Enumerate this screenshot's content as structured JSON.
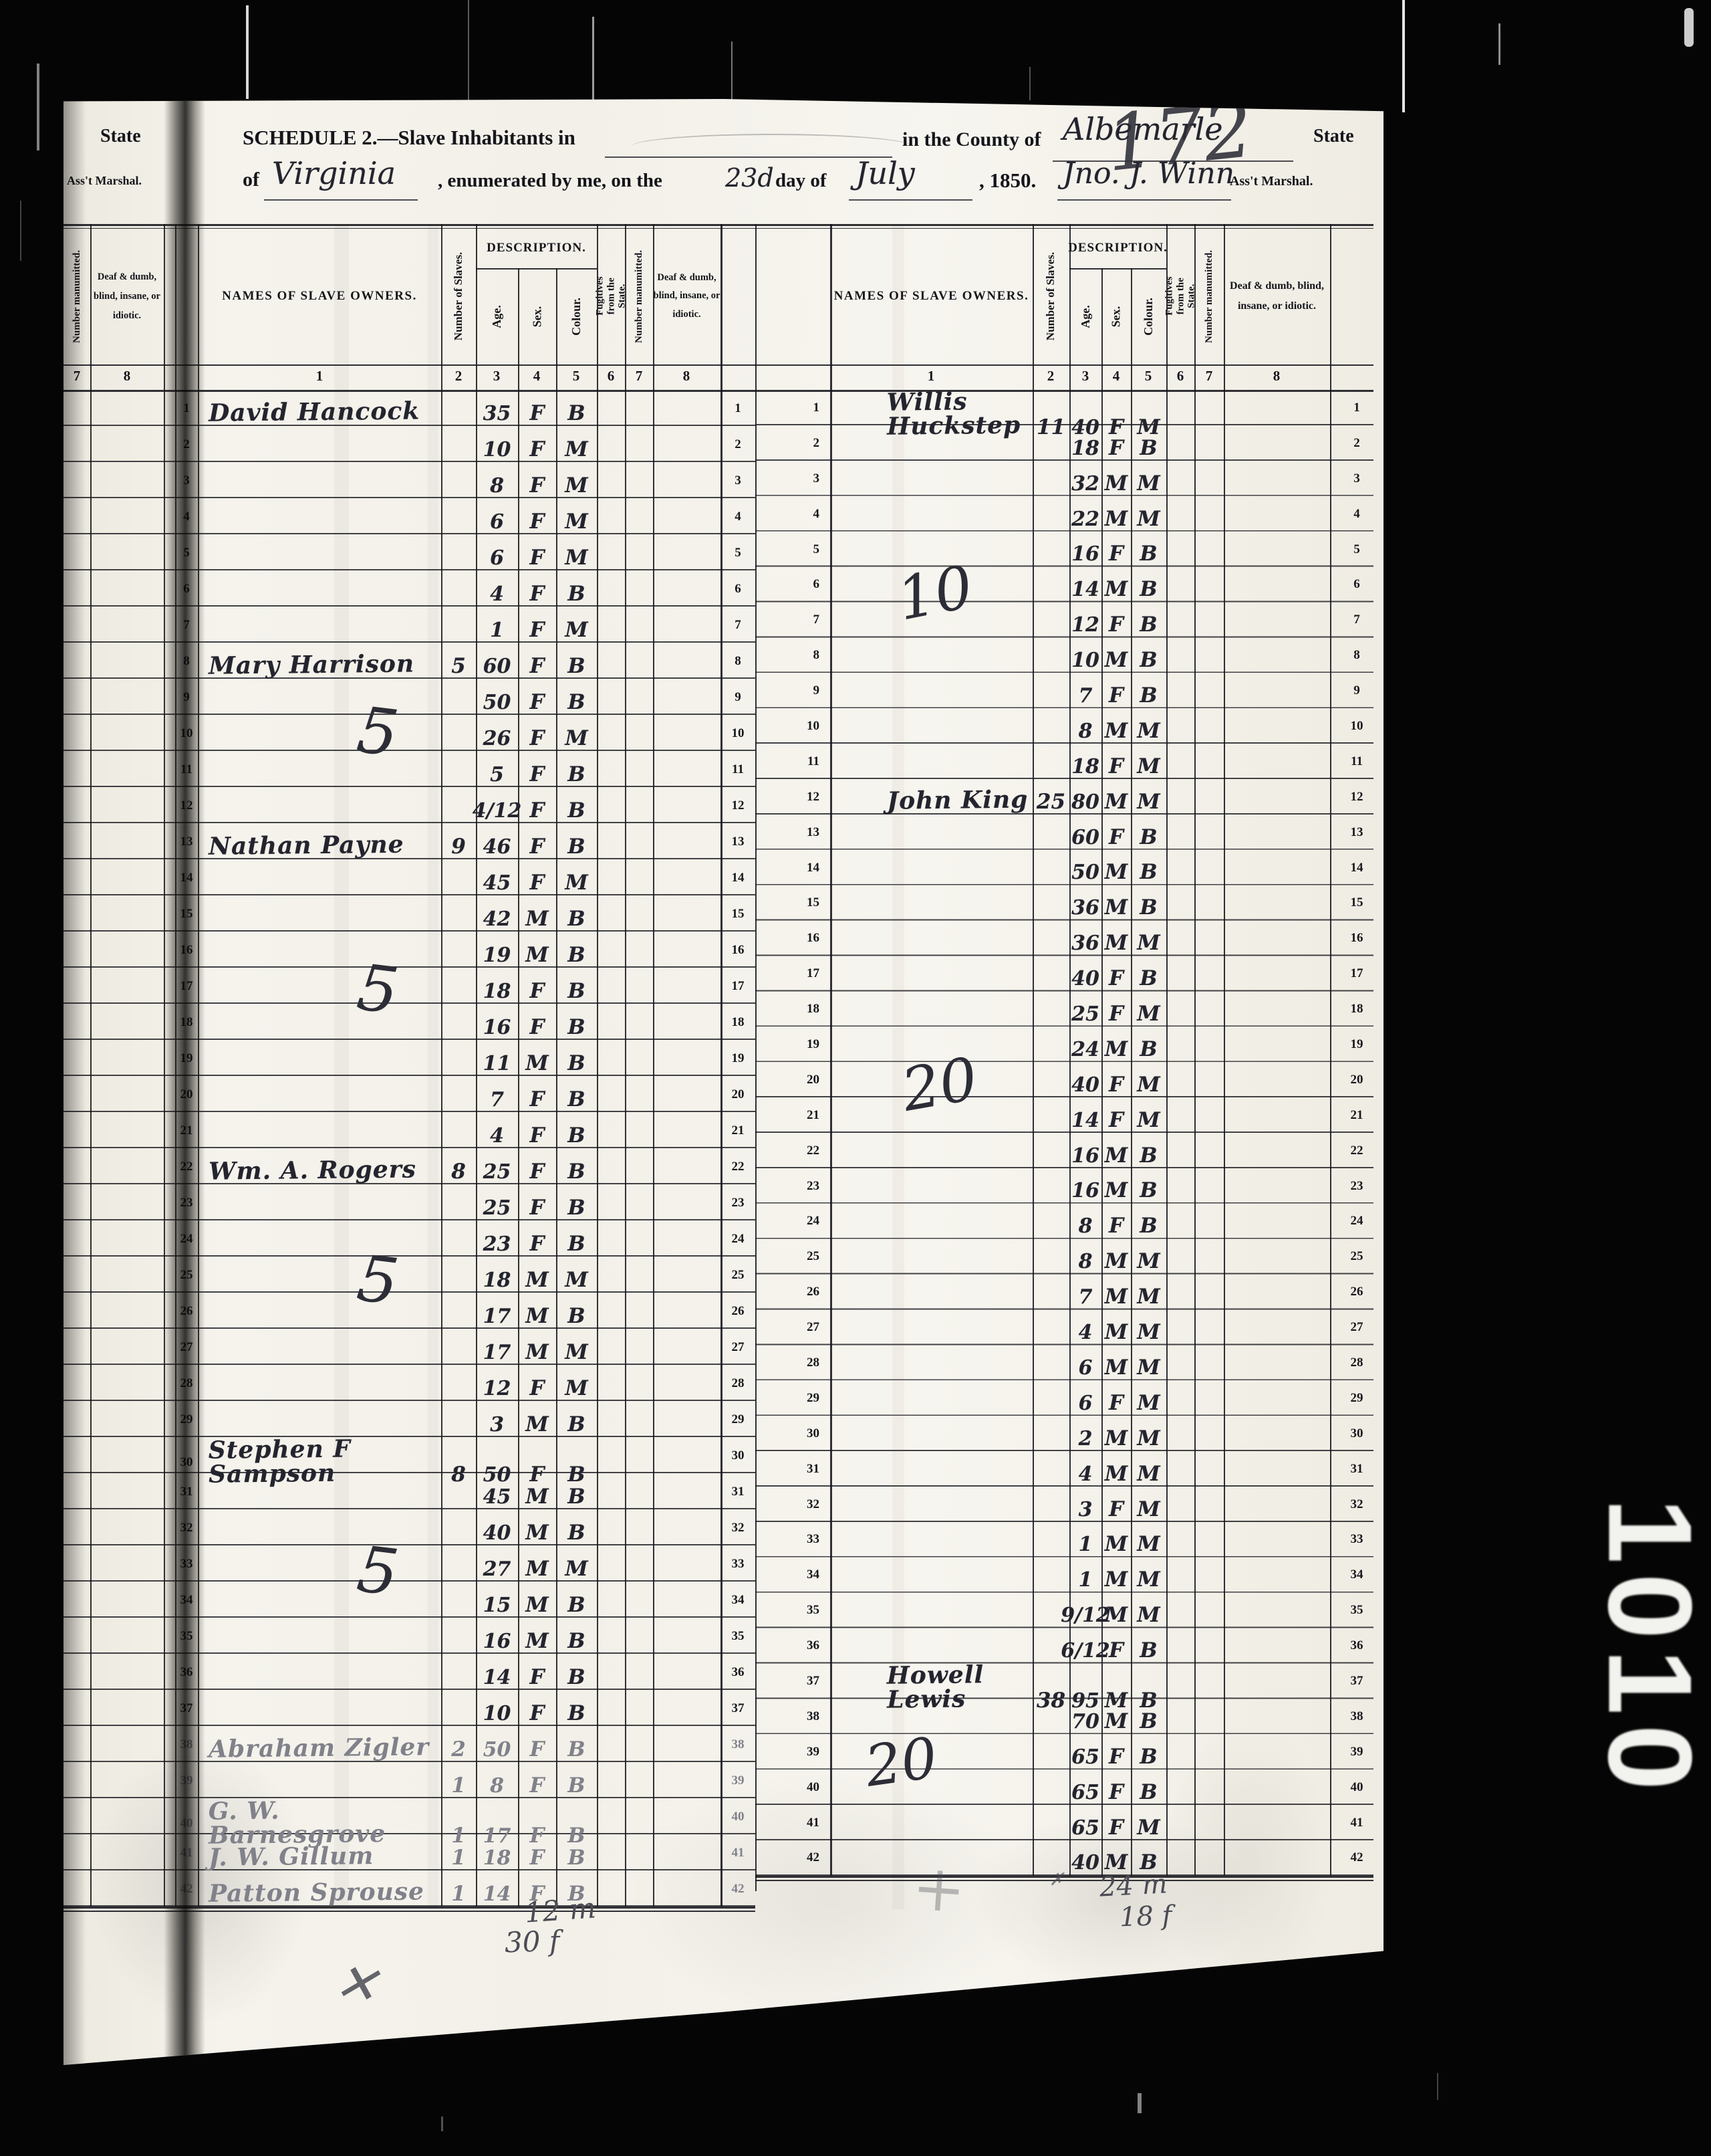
{
  "scan": {
    "stamp": "1010"
  },
  "prev_page": {
    "state_label": "State",
    "marshal_label": "Ass't Marshal.",
    "col7_header": "Number manumitted.",
    "col8_header": "Deaf & dumb, blind, insane, or idiotic.",
    "col7_num": "7",
    "col8_num": "8"
  },
  "header": {
    "schedule_title": "SCHEDULE 2.—Slave Inhabitants in",
    "county_phrase": "in the County of",
    "county_value": "Albemarle",
    "state_word": "State",
    "of_word": "of",
    "state_value": "Virginia",
    "enum_phrase": ", enumerated by me, on the",
    "day_value": "23d",
    "day_of_phrase": "day of",
    "month_value": "July",
    "year_text": ", 1850.",
    "marshal_signature": "Jno. J. Winn",
    "marshal_label": "Ass't Marshal.",
    "page_number": "172"
  },
  "columns": {
    "names": "NAMES OF SLAVE OWNERS.",
    "number": "Number of Slaves.",
    "description": "DESCRIPTION.",
    "age": "Age.",
    "sex": "Sex.",
    "colour": "Colour.",
    "fugitives": "Fugitives from the State.",
    "manumitted": "Number manumitted.",
    "deaf": "Deaf & dumb, blind, insane, or idiotic.",
    "nums": [
      "1",
      "2",
      "3",
      "4",
      "5",
      "6",
      "7",
      "8"
    ]
  },
  "left_table": {
    "rows": [
      {
        "n": "1",
        "owner": "David Hancock",
        "slaves": "",
        "age": "35",
        "sex": "F",
        "colour": "B"
      },
      {
        "n": "2",
        "owner": "",
        "slaves": "",
        "age": "10",
        "sex": "F",
        "colour": "M"
      },
      {
        "n": "3",
        "owner": "",
        "slaves": "",
        "age": "8",
        "sex": "F",
        "colour": "M"
      },
      {
        "n": "4",
        "owner": "",
        "slaves": "",
        "age": "6",
        "sex": "F",
        "colour": "M"
      },
      {
        "n": "5",
        "owner": "",
        "slaves": "",
        "age": "6",
        "sex": "F",
        "colour": "M"
      },
      {
        "n": "6",
        "owner": "",
        "slaves": "",
        "age": "4",
        "sex": "F",
        "colour": "B"
      },
      {
        "n": "7",
        "owner": "",
        "slaves": "",
        "age": "1",
        "sex": "F",
        "colour": "M"
      },
      {
        "n": "8",
        "owner": "Mary Harrison",
        "slaves": "5",
        "age": "60",
        "sex": "F",
        "colour": "B"
      },
      {
        "n": "9",
        "owner": "",
        "slaves": "",
        "age": "50",
        "sex": "F",
        "colour": "B"
      },
      {
        "n": "10",
        "owner": "",
        "slaves": "",
        "age": "26",
        "sex": "F",
        "colour": "M"
      },
      {
        "n": "11",
        "owner": "",
        "slaves": "",
        "age": "5",
        "sex": "F",
        "colour": "B"
      },
      {
        "n": "12",
        "owner": "",
        "slaves": "",
        "age": "4/12",
        "sex": "F",
        "colour": "B"
      },
      {
        "n": "13",
        "owner": "Nathan Payne",
        "slaves": "9",
        "age": "46",
        "sex": "F",
        "colour": "B"
      },
      {
        "n": "14",
        "owner": "",
        "slaves": "",
        "age": "45",
        "sex": "F",
        "colour": "M"
      },
      {
        "n": "15",
        "owner": "",
        "slaves": "",
        "age": "42",
        "sex": "M",
        "colour": "B"
      },
      {
        "n": "16",
        "owner": "",
        "slaves": "",
        "age": "19",
        "sex": "M",
        "colour": "B"
      },
      {
        "n": "17",
        "owner": "",
        "slaves": "",
        "age": "18",
        "sex": "F",
        "colour": "B"
      },
      {
        "n": "18",
        "owner": "",
        "slaves": "",
        "age": "16",
        "sex": "F",
        "colour": "B"
      },
      {
        "n": "19",
        "owner": "",
        "slaves": "",
        "age": "11",
        "sex": "M",
        "colour": "B"
      },
      {
        "n": "20",
        "owner": "",
        "slaves": "",
        "age": "7",
        "sex": "F",
        "colour": "B"
      },
      {
        "n": "21",
        "owner": "",
        "slaves": "",
        "age": "4",
        "sex": "F",
        "colour": "B"
      },
      {
        "n": "22",
        "owner": "Wm. A. Rogers",
        "slaves": "8",
        "age": "25",
        "sex": "F",
        "colour": "B"
      },
      {
        "n": "23",
        "owner": "",
        "slaves": "",
        "age": "25",
        "sex": "F",
        "colour": "B"
      },
      {
        "n": "24",
        "owner": "",
        "slaves": "",
        "age": "23",
        "sex": "F",
        "colour": "B"
      },
      {
        "n": "25",
        "owner": "",
        "slaves": "",
        "age": "18",
        "sex": "M",
        "colour": "M"
      },
      {
        "n": "26",
        "owner": "",
        "slaves": "",
        "age": "17",
        "sex": "M",
        "colour": "B"
      },
      {
        "n": "27",
        "owner": "",
        "slaves": "",
        "age": "17",
        "sex": "M",
        "colour": "M"
      },
      {
        "n": "28",
        "owner": "",
        "slaves": "",
        "age": "12",
        "sex": "F",
        "colour": "M"
      },
      {
        "n": "29",
        "owner": "",
        "slaves": "",
        "age": "3",
        "sex": "M",
        "colour": "B"
      },
      {
        "n": "30",
        "owner": "Stephen F Sampson",
        "slaves": "8",
        "age": "50",
        "sex": "F",
        "colour": "B"
      },
      {
        "n": "31",
        "owner": "",
        "slaves": "",
        "age": "45",
        "sex": "M",
        "colour": "B"
      },
      {
        "n": "32",
        "owner": "",
        "slaves": "",
        "age": "40",
        "sex": "M",
        "colour": "B"
      },
      {
        "n": "33",
        "owner": "",
        "slaves": "",
        "age": "27",
        "sex": "M",
        "colour": "M"
      },
      {
        "n": "34",
        "owner": "",
        "slaves": "",
        "age": "15",
        "sex": "M",
        "colour": "B"
      },
      {
        "n": "35",
        "owner": "",
        "slaves": "",
        "age": "16",
        "sex": "M",
        "colour": "B"
      },
      {
        "n": "36",
        "owner": "",
        "slaves": "",
        "age": "14",
        "sex": "F",
        "colour": "B"
      },
      {
        "n": "37",
        "owner": "",
        "slaves": "",
        "age": "10",
        "sex": "F",
        "colour": "B"
      },
      {
        "n": "38",
        "owner": "Abraham Zigler",
        "slaves": "2",
        "age": "50",
        "sex": "F",
        "colour": "B",
        "faint": true
      },
      {
        "n": "39",
        "owner": "",
        "slaves": "1",
        "age": "8",
        "sex": "F",
        "colour": "B",
        "faint": true
      },
      {
        "n": "40",
        "owner": "G. W. Barnesgrove",
        "slaves": "1",
        "age": "17",
        "sex": "F",
        "colour": "B",
        "faint": true
      },
      {
        "n": "41",
        "owner": "J. W. Gillum",
        "slaves": "1",
        "age": "18",
        "sex": "F",
        "colour": "B",
        "faint": true
      },
      {
        "n": "42",
        "owner": "Patton Sprouse",
        "slaves": "1",
        "age": "14",
        "sex": "F",
        "colour": "B",
        "faint": true
      }
    ]
  },
  "right_table": {
    "rows": [
      {
        "n": "1",
        "owner": "Willis Huckstep",
        "slaves": "11",
        "age": "40",
        "sex": "F",
        "colour": "M"
      },
      {
        "n": "2",
        "owner": "",
        "slaves": "",
        "age": "18",
        "sex": "F",
        "colour": "B"
      },
      {
        "n": "3",
        "owner": "",
        "slaves": "",
        "age": "32",
        "sex": "M",
        "colour": "M"
      },
      {
        "n": "4",
        "owner": "",
        "slaves": "",
        "age": "22",
        "sex": "M",
        "colour": "M"
      },
      {
        "n": "5",
        "owner": "",
        "slaves": "",
        "age": "16",
        "sex": "F",
        "colour": "B"
      },
      {
        "n": "6",
        "owner": "",
        "slaves": "",
        "age": "14",
        "sex": "M",
        "colour": "B"
      },
      {
        "n": "7",
        "owner": "",
        "slaves": "",
        "age": "12",
        "sex": "F",
        "colour": "B"
      },
      {
        "n": "8",
        "owner": "",
        "slaves": "",
        "age": "10",
        "sex": "M",
        "colour": "B"
      },
      {
        "n": "9",
        "owner": "",
        "slaves": "",
        "age": "7",
        "sex": "F",
        "colour": "B"
      },
      {
        "n": "10",
        "owner": "",
        "slaves": "",
        "age": "8",
        "sex": "M",
        "colour": "M"
      },
      {
        "n": "11",
        "owner": "",
        "slaves": "",
        "age": "18",
        "sex": "F",
        "colour": "M"
      },
      {
        "n": "12",
        "owner": "John King",
        "slaves": "25",
        "age": "80",
        "sex": "M",
        "colour": "M"
      },
      {
        "n": "13",
        "owner": "",
        "slaves": "",
        "age": "60",
        "sex": "F",
        "colour": "B"
      },
      {
        "n": "14",
        "owner": "",
        "slaves": "",
        "age": "50",
        "sex": "M",
        "colour": "B"
      },
      {
        "n": "15",
        "owner": "",
        "slaves": "",
        "age": "36",
        "sex": "M",
        "colour": "B"
      },
      {
        "n": "16",
        "owner": "",
        "slaves": "",
        "age": "36",
        "sex": "M",
        "colour": "M"
      },
      {
        "n": "17",
        "owner": "",
        "slaves": "",
        "age": "40",
        "sex": "F",
        "colour": "B"
      },
      {
        "n": "18",
        "owner": "",
        "slaves": "",
        "age": "25",
        "sex": "F",
        "colour": "M"
      },
      {
        "n": "19",
        "owner": "",
        "slaves": "",
        "age": "24",
        "sex": "M",
        "colour": "B"
      },
      {
        "n": "20",
        "owner": "",
        "slaves": "",
        "age": "40",
        "sex": "F",
        "colour": "M"
      },
      {
        "n": "21",
        "owner": "",
        "slaves": "",
        "age": "14",
        "sex": "F",
        "colour": "M"
      },
      {
        "n": "22",
        "owner": "",
        "slaves": "",
        "age": "16",
        "sex": "M",
        "colour": "B"
      },
      {
        "n": "23",
        "owner": "",
        "slaves": "",
        "age": "16",
        "sex": "M",
        "colour": "B"
      },
      {
        "n": "24",
        "owner": "",
        "slaves": "",
        "age": "8",
        "sex": "F",
        "colour": "B"
      },
      {
        "n": "25",
        "owner": "",
        "slaves": "",
        "age": "8",
        "sex": "M",
        "colour": "M"
      },
      {
        "n": "26",
        "owner": "",
        "slaves": "",
        "age": "7",
        "sex": "M",
        "colour": "M"
      },
      {
        "n": "27",
        "owner": "",
        "slaves": "",
        "age": "4",
        "sex": "M",
        "colour": "M"
      },
      {
        "n": "28",
        "owner": "",
        "slaves": "",
        "age": "6",
        "sex": "M",
        "colour": "M"
      },
      {
        "n": "29",
        "owner": "",
        "slaves": "",
        "age": "6",
        "sex": "F",
        "colour": "M"
      },
      {
        "n": "30",
        "owner": "",
        "slaves": "",
        "age": "2",
        "sex": "M",
        "colour": "M"
      },
      {
        "n": "31",
        "owner": "",
        "slaves": "",
        "age": "4",
        "sex": "M",
        "colour": "M"
      },
      {
        "n": "32",
        "owner": "",
        "slaves": "",
        "age": "3",
        "sex": "F",
        "colour": "M"
      },
      {
        "n": "33",
        "owner": "",
        "slaves": "",
        "age": "1",
        "sex": "M",
        "colour": "M"
      },
      {
        "n": "34",
        "owner": "",
        "slaves": "",
        "age": "1",
        "sex": "M",
        "colour": "M"
      },
      {
        "n": "35",
        "owner": "",
        "slaves": "",
        "age": "9/12",
        "sex": "M",
        "colour": "M"
      },
      {
        "n": "36",
        "owner": "",
        "slaves": "",
        "age": "6/12",
        "sex": "F",
        "colour": "B"
      },
      {
        "n": "37",
        "owner": "Howell Lewis",
        "slaves": "38",
        "age": "95",
        "sex": "M",
        "colour": "B"
      },
      {
        "n": "38",
        "owner": "",
        "slaves": "",
        "age": "70",
        "sex": "M",
        "colour": "B"
      },
      {
        "n": "39",
        "owner": "",
        "slaves": "",
        "age": "65",
        "sex": "F",
        "colour": "B"
      },
      {
        "n": "40",
        "owner": "",
        "slaves": "",
        "age": "65",
        "sex": "F",
        "colour": "B"
      },
      {
        "n": "41",
        "owner": "",
        "slaves": "",
        "age": "65",
        "sex": "F",
        "colour": "M"
      },
      {
        "n": "42",
        "owner": "",
        "slaves": "",
        "age": "40",
        "sex": "M",
        "colour": "B"
      }
    ]
  },
  "marks": {
    "left_tallies": [
      "5",
      "5",
      "5",
      "5"
    ],
    "right_group_1": "10",
    "right_group_2": "20",
    "right_group_3": "20",
    "left_total_male": "12 m",
    "left_total_female": "30 f",
    "right_total_male": "24 m",
    "right_total_female": "18 f",
    "cross_mark": "✕",
    "small_x": "✗",
    "plus_mark": "+"
  }
}
